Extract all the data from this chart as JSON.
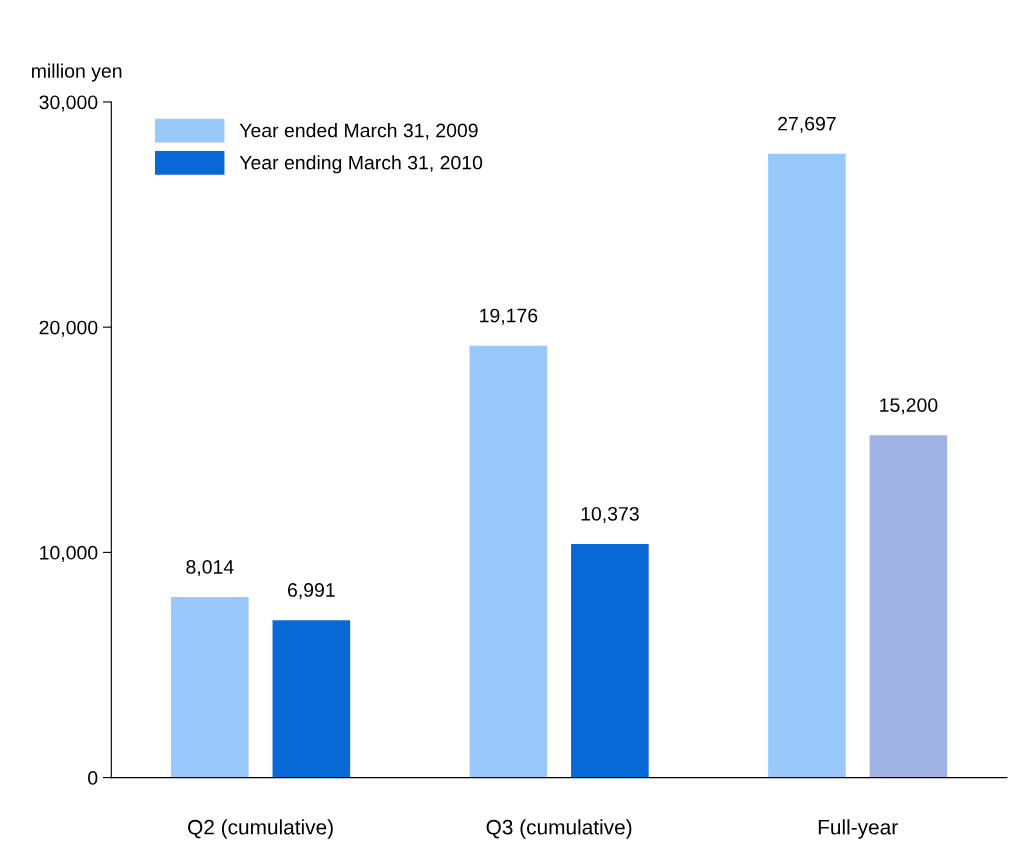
{
  "chart_data": {
    "type": "bar",
    "ylabel": "million yen",
    "categories": [
      "Q2 (cumulative)",
      "Q3 (cumulative)",
      "Full-year"
    ],
    "series": [
      {
        "name": "Year ended March 31, 2009",
        "color": "#99c8fb",
        "values": [
          8014,
          19176,
          27697
        ],
        "value_labels": [
          "8,014",
          "19,176",
          "27,697"
        ]
      },
      {
        "name": "Year ending March 31, 2010",
        "color": "#0868d6",
        "colors": [
          "#0868d6",
          "#0868d6",
          "#9fb2e3"
        ],
        "values": [
          6991,
          10373,
          15200
        ],
        "value_labels": [
          "6,991",
          "10,373",
          "15,200"
        ]
      }
    ],
    "ylim": [
      0,
      30000
    ],
    "yticks": [
      {
        "value": 0,
        "label": "0"
      },
      {
        "value": 10000,
        "label": "10,000"
      },
      {
        "value": 20000,
        "label": "20,000"
      },
      {
        "value": 30000,
        "label": "30,000"
      }
    ],
    "grid": false,
    "legend": "top left"
  }
}
